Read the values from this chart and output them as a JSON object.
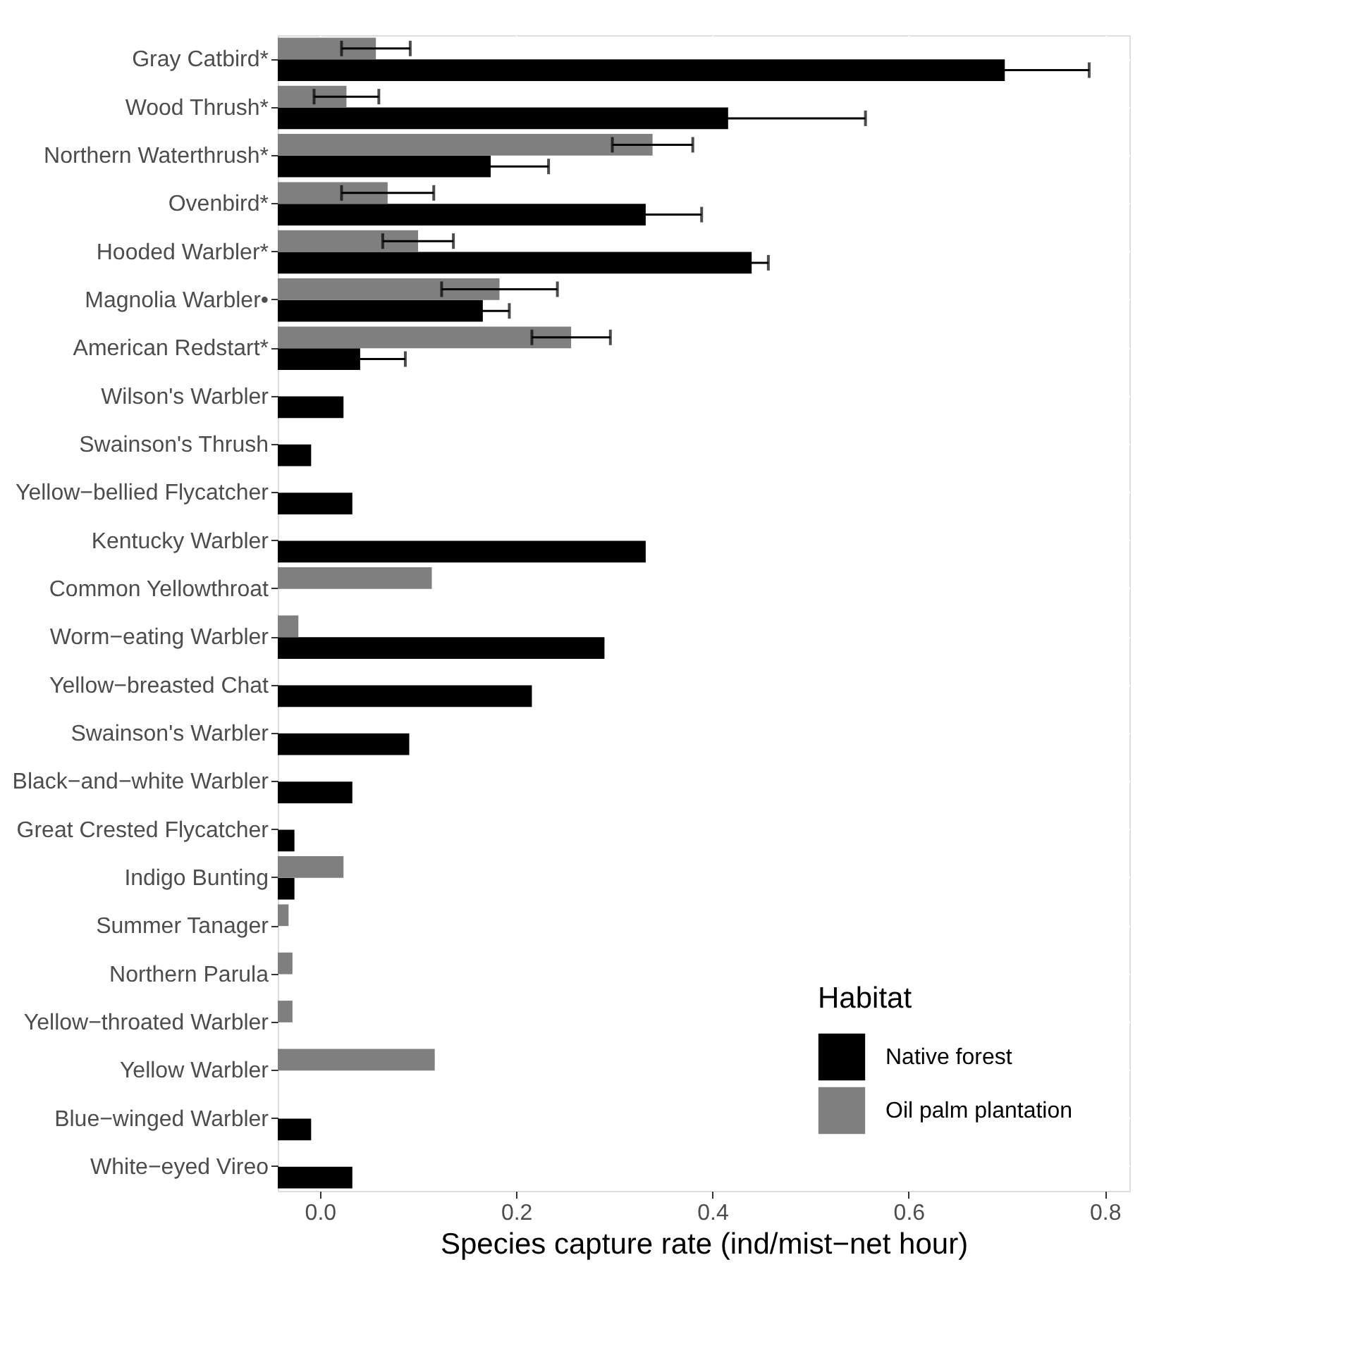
{
  "chart_data": {
    "type": "bar",
    "orientation": "horizontal",
    "xlabel": "Species capture rate (ind/mist−net hour)",
    "legend_title": "Habitat",
    "categories": [
      "Gray Catbird*",
      "Wood Thrush*",
      "Northern Waterthrush*",
      "Ovenbird*",
      "Hooded Warbler*",
      "Magnolia Warbler•",
      "American Redstart*",
      "Wilson's Warbler",
      "Swainson's Thrush",
      "Yellow−bellied Flycatcher",
      "Kentucky Warbler",
      "Common Yellowthroat",
      "Worm−eating Warbler",
      "Yellow−breasted Chat",
      "Swainson's Warbler",
      "Black−and−white Warbler",
      "Great Crested Flycatcher",
      "Indigo Bunting",
      "Summer Tanager",
      "Northern Parula",
      "Yellow−throated Warbler",
      "Yellow Warbler",
      "Blue−winged Warbler",
      "White−eyed Vireo"
    ],
    "series": [
      {
        "name": "Native forest",
        "color": "#000000",
        "values": [
          0.741,
          0.459,
          0.217,
          0.375,
          0.483,
          0.209,
          0.084,
          0.067,
          0.034,
          0.076,
          0.375,
          null,
          0.333,
          0.259,
          0.134,
          0.076,
          0.017,
          0.017,
          null,
          null,
          null,
          null,
          0.034,
          0.076
        ],
        "base": [
          -0.043,
          -0.043,
          -0.043,
          -0.043,
          -0.043,
          -0.043,
          -0.043,
          -0.043,
          -0.043,
          -0.043,
          -0.043,
          null,
          -0.043,
          -0.043,
          -0.043,
          -0.043,
          -0.043,
          -0.043,
          null,
          null,
          null,
          null,
          -0.043,
          -0.043
        ],
        "errors": [
          0.086,
          0.14,
          0.059,
          0.057,
          0.017,
          0.027,
          0.046,
          null,
          null,
          null,
          null,
          null,
          null,
          null,
          null,
          null,
          null,
          null,
          null,
          null,
          null,
          null,
          null,
          null
        ]
      },
      {
        "name": "Oil palm plantation",
        "color": "#7f7f7f",
        "values": [
          0.1,
          0.07,
          0.382,
          0.112,
          0.143,
          0.226,
          0.299,
          null,
          null,
          null,
          null,
          0.157,
          0.021,
          null,
          null,
          null,
          null,
          0.067,
          0.011,
          0.015,
          0.015,
          0.16,
          null,
          null
        ],
        "base": [
          -0.043,
          -0.043,
          -0.043,
          -0.043,
          -0.043,
          -0.043,
          -0.043,
          null,
          null,
          null,
          null,
          -0.043,
          -0.043,
          null,
          null,
          null,
          null,
          -0.043,
          -0.043,
          -0.043,
          -0.043,
          -0.043,
          null,
          null
        ],
        "errors": [
          0.035,
          0.033,
          0.041,
          0.047,
          0.036,
          0.059,
          0.04,
          null,
          null,
          null,
          null,
          null,
          null,
          null,
          null,
          null,
          null,
          null,
          null,
          null,
          null,
          null,
          null,
          null
        ]
      }
    ],
    "xlim": [
      -0.043,
      0.825
    ],
    "xticks": [
      {
        "value": 0,
        "label": "0.0"
      },
      {
        "value": 0.2,
        "label": "0.2"
      },
      {
        "value": 0.4,
        "label": "0.4"
      },
      {
        "value": 0.6,
        "label": "0.6"
      },
      {
        "value": 0.8,
        "label": "0.8"
      }
    ],
    "grid": true,
    "legend": "bottom right"
  }
}
